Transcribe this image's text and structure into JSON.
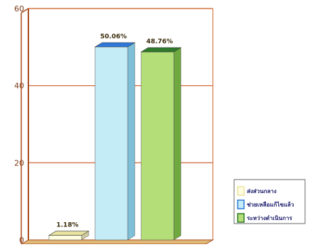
{
  "chart_data": {
    "type": "bar",
    "categories": [
      "ส่งส่วนกลาง",
      "ช่วยเหลือแก้ไขแล้ว",
      "ระหว่างดำเนินการ"
    ],
    "values": [
      1.18,
      50.06,
      48.76
    ],
    "value_labels": [
      "1.18%",
      "50.06%",
      "48.76%"
    ],
    "ylim": [
      0,
      60
    ],
    "yticks": [
      0,
      20,
      40,
      60
    ],
    "grid": true,
    "legend": {
      "position": "bottom-right",
      "entries": [
        "ส่งส่วนกลาง",
        "ช่วยเหลือแก้ไขแล้ว",
        "ระหว่างดำเนินการ"
      ]
    },
    "colors": {
      "bars": [
        "#fffde0",
        "#c4ecf7",
        "#b4df78"
      ],
      "bar_tops": [
        "#e8e4a0",
        "#2f78d8",
        "#2f7a2a"
      ],
      "bar_sides": [
        "#cfcaa0",
        "#7fc0d8",
        "#6fa83e"
      ],
      "gridline": "#cc5a22",
      "axis": "#a84c1e",
      "floor": "#e0b878"
    },
    "title": "",
    "xlabel": "",
    "ylabel": ""
  }
}
